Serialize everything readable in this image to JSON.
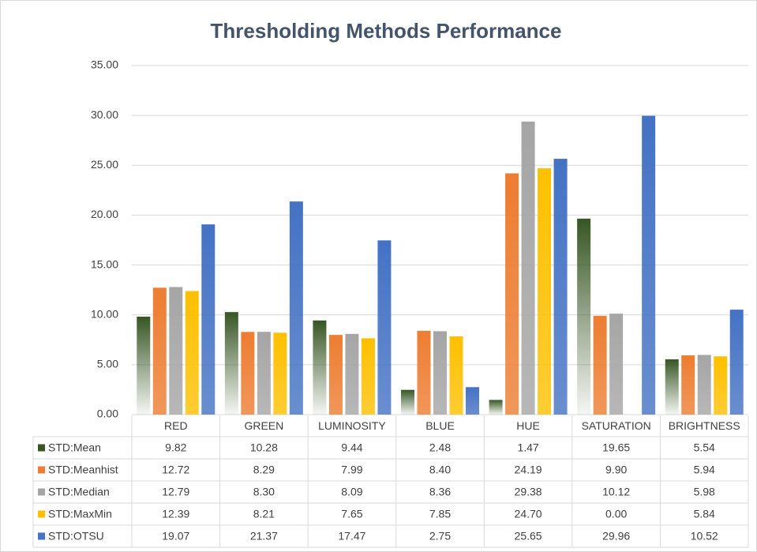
{
  "chart_data": {
    "type": "bar",
    "title": "Thresholding Methods Performance",
    "categories": [
      "RED",
      "GREEN",
      "LUMINOSITY",
      "BLUE",
      "HUE",
      "SATURATION",
      "BRIGHTNESS"
    ],
    "series": [
      {
        "name": "STD:Mean",
        "color": "#375623",
        "values": [
          9.82,
          10.28,
          9.44,
          2.48,
          1.47,
          19.65,
          5.54
        ],
        "value_labels": [
          "9.82",
          "10.28",
          "9.44",
          "2.48",
          "1.47",
          "19.65",
          "5.54"
        ]
      },
      {
        "name": "STD:Meanhist",
        "color": "#ed7d31",
        "values": [
          12.72,
          8.29,
          7.99,
          8.4,
          24.19,
          9.9,
          5.94
        ],
        "value_labels": [
          "12.72",
          "8.29",
          "7.99",
          "8.40",
          "24.19",
          "9.90",
          "5.94"
        ]
      },
      {
        "name": "STD:Median",
        "color": "#a5a5a5",
        "values": [
          12.79,
          8.3,
          8.09,
          8.36,
          29.38,
          10.12,
          5.98
        ],
        "value_labels": [
          "12.79",
          "8.30",
          "8.09",
          "8.36",
          "29.38",
          "10.12",
          "5.98"
        ]
      },
      {
        "name": "STD:MaxMin",
        "color": "#ffc000",
        "values": [
          12.39,
          8.21,
          7.65,
          7.85,
          24.7,
          0,
          5.84
        ],
        "value_labels": [
          "12.39",
          "8.21",
          "7.65",
          "7.85",
          "24.70",
          "0.00",
          "5.84"
        ]
      },
      {
        "name": "STD:OTSU",
        "color": "#4472c4",
        "values": [
          19.07,
          21.37,
          17.47,
          2.75,
          25.65,
          29.96,
          10.52
        ],
        "value_labels": [
          "19.07",
          "21.37",
          "17.47",
          "2.75",
          "25.65",
          "29.96",
          "10.52"
        ]
      }
    ],
    "ylim": [
      0,
      35
    ],
    "yticks": [
      {
        "value": 0,
        "label": "0.00"
      },
      {
        "value": 5,
        "label": "5.00"
      },
      {
        "value": 10,
        "label": "10.00"
      },
      {
        "value": 15,
        "label": "15.00"
      },
      {
        "value": 20,
        "label": "20.00"
      },
      {
        "value": 25,
        "label": "25.00"
      },
      {
        "value": 30,
        "label": "30.00"
      },
      {
        "value": 35,
        "label": "35.00"
      }
    ],
    "grid": true
  }
}
